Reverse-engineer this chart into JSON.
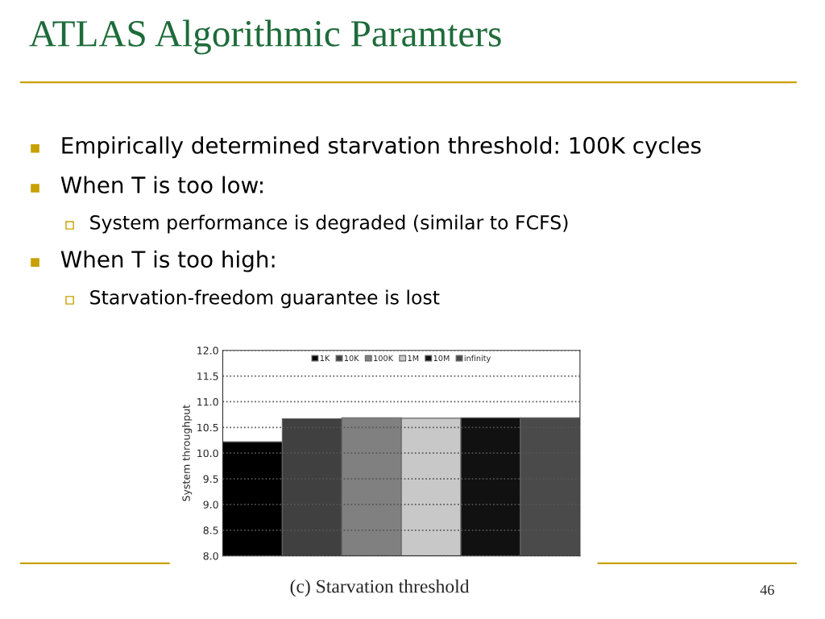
{
  "chart_data": {
    "type": "bar",
    "title": "ATLAS Algorithmic Paramters",
    "categories": [
      null
    ],
    "series": [
      {
        "name": "1K",
        "color": "#000000",
        "values": [
          10.22
        ]
      },
      {
        "name": "10K",
        "color": "#404040",
        "values": [
          10.67
        ]
      },
      {
        "name": "100K",
        "color": "#808080",
        "values": [
          10.69
        ]
      },
      {
        "name": "1M",
        "color": "#c8c8c8",
        "values": [
          10.68
        ]
      },
      {
        "name": "10M",
        "color": "#111111",
        "values": [
          10.69
        ]
      },
      {
        "name": "infinity",
        "color": "#4a4a4a",
        "values": [
          10.69
        ]
      }
    ],
    "ylabel": "System throughput",
    "ylim": [
      8.0,
      12.0
    ],
    "yticks": [
      {
        "value": 8.0,
        "label": "8.0"
      },
      {
        "value": 8.5,
        "label": "8.5"
      },
      {
        "value": 9.0,
        "label": "9.0"
      },
      {
        "value": 9.5,
        "label": "9.5"
      },
      {
        "value": 10.0,
        "label": "10.0"
      },
      {
        "value": 10.5,
        "label": "10.5"
      },
      {
        "value": 11.0,
        "label": "11.0"
      },
      {
        "value": 11.5,
        "label": "11.5"
      },
      {
        "value": 12.0,
        "label": "12.0"
      }
    ],
    "grid": "y",
    "legend": "top",
    "annotations": [
      "Empirically determined starvation threshold: 100K cycles",
      "When T is too low:",
      "System performance is degraded (similar to FCFS)",
      "When T is too high:",
      "Starvation-freedom guarantee is lost",
      "(c) Starvation threshold",
      "46"
    ]
  }
}
